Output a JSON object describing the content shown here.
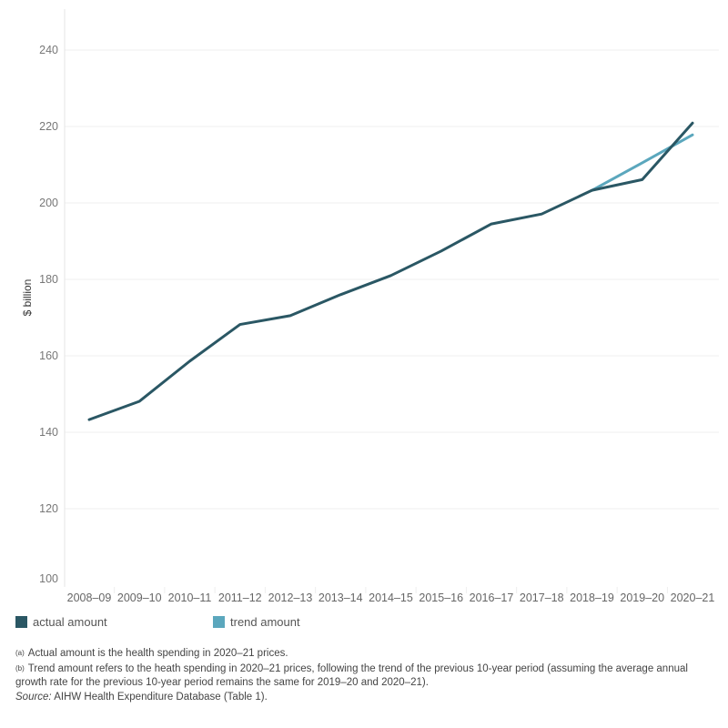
{
  "chart_data": {
    "type": "line",
    "ylabel": "$ billion",
    "xlabel": "",
    "ylim": [
      100,
      240
    ],
    "yticks": [
      100,
      120,
      140,
      160,
      180,
      200,
      220,
      240
    ],
    "grid": true,
    "legend_position": "bottom",
    "categories": [
      "2008–09",
      "2009–10",
      "2010–11",
      "2011–12",
      "2012–13",
      "2013–14",
      "2014–15",
      "2015–16",
      "2016–17",
      "2017–18",
      "2018–19",
      "2019–20",
      "2020–21"
    ],
    "series": [
      {
        "name": "actual amount",
        "color": "#2a5764",
        "values": [
          143.3,
          148.1,
          158.6,
          168.2,
          170.5,
          176.0,
          181.0,
          187.4,
          194.5,
          197.1,
          203.3,
          206.1,
          220.9
        ]
      },
      {
        "name": "trend amount",
        "color": "#5ba7bd",
        "values": [
          null,
          null,
          null,
          null,
          null,
          null,
          null,
          null,
          null,
          null,
          203.3,
          210.5,
          217.8
        ]
      }
    ]
  },
  "notes": {
    "a_marker": "(a)",
    "a_text": "Actual amount is the health spending in 2020–21 prices.",
    "b_marker": "(b)",
    "b_text": "Trend amount refers to the heath spending in 2020–21 prices, following the trend of the previous 10-year period (assuming the average annual growth rate for the previous 10-year period remains the same for  2019–20 and 2020–21).",
    "source_label": "Source:",
    "source_text": "AIHW Health Expenditure Database (Table 1)."
  }
}
